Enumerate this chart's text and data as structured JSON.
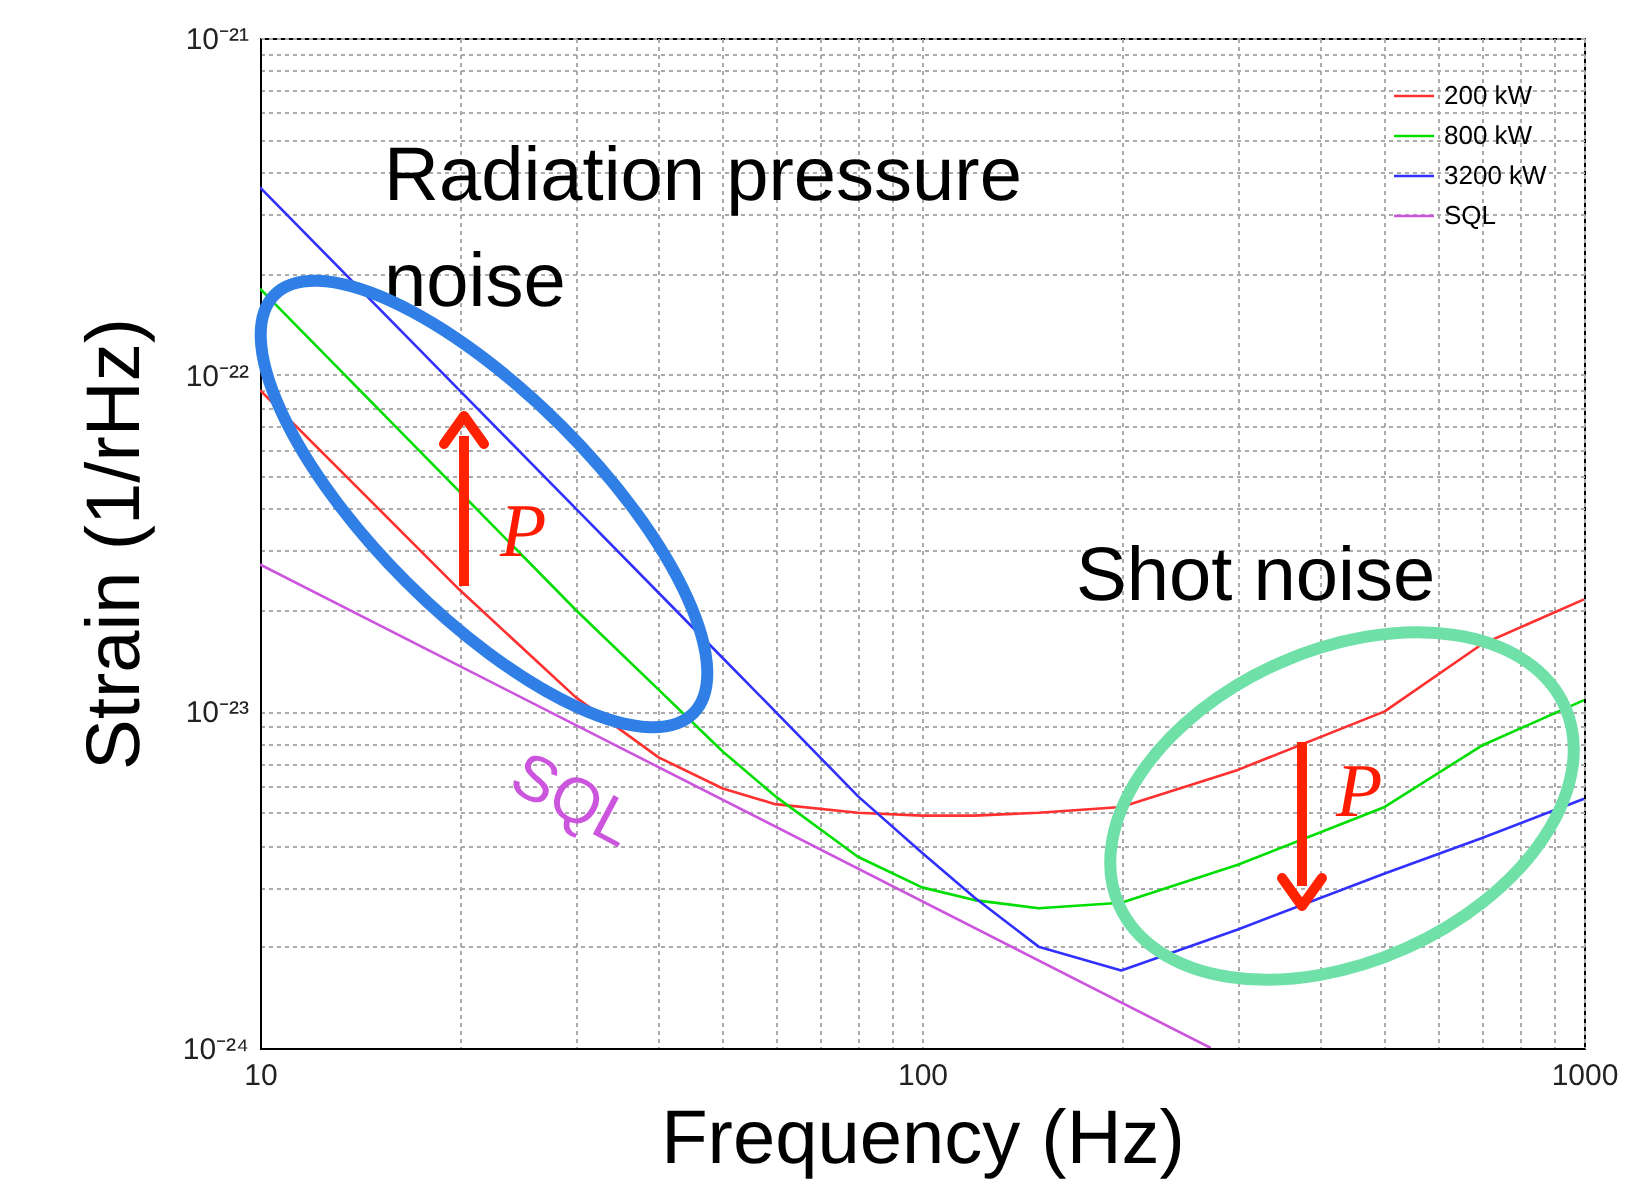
{
  "chart_data": {
    "type": "line",
    "xlabel": "Frequency (Hz)",
    "ylabel": "Strain (1/rHz)",
    "log": "xy",
    "grid": true,
    "legend": "top right",
    "xlim": [
      10,
      1000
    ],
    "xticks": [
      10,
      {
        "value": 20,
        "label": null
      },
      {
        "value": 30,
        "label": null
      },
      {
        "value": 40,
        "label": null
      },
      {
        "value": 50,
        "label": null
      },
      {
        "value": 60,
        "label": null
      },
      {
        "value": 70,
        "label": null
      },
      {
        "value": 80,
        "label": null
      },
      {
        "value": 90,
        "label": null
      },
      100,
      {
        "value": 200,
        "label": null
      },
      {
        "value": 300,
        "label": null
      },
      {
        "value": 400,
        "label": null
      },
      {
        "value": 500,
        "label": null
      },
      {
        "value": 600,
        "label": null
      },
      {
        "value": 700,
        "label": null
      },
      {
        "value": 800,
        "label": null
      },
      {
        "value": 900,
        "label": null
      },
      1000
    ],
    "ylim": [
      1e-24,
      1e-21
    ],
    "yticks": [
      {
        "value": 1e-24,
        "label": "10⁻²⁴"
      },
      {
        "value": 2e-24,
        "label": null
      },
      {
        "value": 3e-24,
        "label": null
      },
      {
        "value": 4e-24,
        "label": null
      },
      {
        "value": 5e-24,
        "label": null
      },
      {
        "value": 6e-24,
        "label": null
      },
      {
        "value": 7e-24,
        "label": null
      },
      {
        "value": 8e-24,
        "label": null
      },
      {
        "value": 9e-24,
        "label": null
      },
      {
        "value": 1e-23,
        "label": "10⁻²³"
      },
      {
        "value": 2e-23,
        "label": null
      },
      {
        "value": 3e-23,
        "label": null
      },
      {
        "value": 4e-23,
        "label": null
      },
      {
        "value": 5e-23,
        "label": null
      },
      {
        "value": 6e-23,
        "label": null
      },
      {
        "value": 7e-23,
        "label": null
      },
      {
        "value": 8e-23,
        "label": null
      },
      {
        "value": 9e-23,
        "label": null
      },
      {
        "value": 1e-22,
        "label": "10⁻²²"
      },
      {
        "value": 2e-22,
        "label": null
      },
      {
        "value": 3e-22,
        "label": null
      },
      {
        "value": 4e-22,
        "label": null
      },
      {
        "value": 5e-22,
        "label": null
      },
      {
        "value": 6e-22,
        "label": null
      },
      {
        "value": 7e-22,
        "label": null
      },
      {
        "value": 8e-22,
        "label": null
      },
      {
        "value": 9e-22,
        "label": null
      },
      {
        "value": 1e-21,
        "label": "10⁻²¹"
      }
    ],
    "x": [
      10,
      20,
      30,
      40,
      50,
      60,
      80,
      100,
      120,
      150,
      200,
      300,
      500,
      700,
      1000
    ],
    "series": [
      {
        "name": "200 kW",
        "color": "#ff3030",
        "values": [
          9e-23,
          2.3e-23,
          1.1e-23,
          7.3e-24,
          5.9e-24,
          5.3e-24,
          5e-24,
          4.9e-24,
          4.9e-24,
          5e-24,
          5.2e-24,
          6.7e-24,
          1e-23,
          1.58e-23,
          2.15e-23
        ]
      },
      {
        "name": "800 kW",
        "color": "#00dd00",
        "values": [
          1.8e-22,
          4.5e-23,
          2e-23,
          1.16e-23,
          7.6e-24,
          5.6e-24,
          3.7e-24,
          3e-24,
          2.75e-24,
          2.6e-24,
          2.7e-24,
          3.5e-24,
          5.2e-24,
          7.9e-24,
          1.08e-23
        ]
      },
      {
        "name": "3200 kW",
        "color": "#3030ff",
        "values": [
          3.6e-22,
          9e-23,
          4e-23,
          2.25e-23,
          1.44e-23,
          1e-23,
          5.6e-24,
          3.8e-24,
          2.8e-24,
          2e-24,
          1.7e-24,
          2.25e-24,
          3.3e-24,
          4.2e-24,
          5.5e-24
        ]
      },
      {
        "name": "SQL",
        "color": "#cc55dd",
        "x": [
          10,
          273
        ],
        "values": [
          2.73e-23,
          1e-24
        ]
      }
    ],
    "annotations": [
      "Radiation pressure noise",
      "Shot noise",
      "P",
      "P",
      "SQL"
    ]
  }
}
